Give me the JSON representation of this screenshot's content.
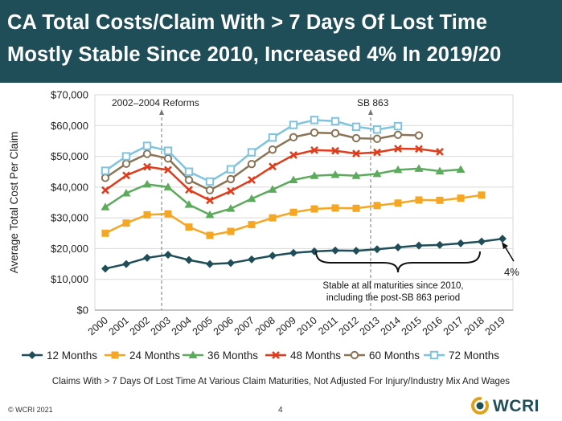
{
  "title": {
    "line1": "CA Total Costs/Claim With > 7 Days Of Lost Time",
    "line2": "Mostly Stable Since 2010, Increased 4% In 2019/20"
  },
  "caption": "Claims With > 7 Days Of Lost Time At Various Claim Maturities, Not Adjusted For Injury/Industry Mix And Wages",
  "footer": {
    "copyright": "© WCRI 2021",
    "page_number": "4",
    "logo_text": "WCRI"
  },
  "colors": {
    "title_bg": "#1f4e58",
    "grid": "#d9d9d9",
    "axis": "#888888",
    "12": "#1f4e58",
    "24": "#f5a623",
    "36": "#5cab5c",
    "48": "#e03c1c",
    "60": "#8b7355",
    "72": "#7fc3de"
  },
  "chart_data": {
    "type": "line",
    "title": "CA Total Costs/Claim With > 7 Days Of Lost Time",
    "ylabel": "Average Total Cost Per Claim",
    "xlabel": "",
    "ylim": [
      0,
      70000
    ],
    "yticks": [
      0,
      10000,
      20000,
      30000,
      40000,
      50000,
      60000,
      70000
    ],
    "ytick_labels": [
      "$0",
      "$10,000",
      "$20,000",
      "$30,000",
      "$40,000",
      "$50,000",
      "$60,000",
      "$70,000"
    ],
    "categories": [
      "2000",
      "2001",
      "2002",
      "2003",
      "2004",
      "2005",
      "2006",
      "2007",
      "2008",
      "2009",
      "2010",
      "2011",
      "2012",
      "2013",
      "2014",
      "2015",
      "2016",
      "2017",
      "2018",
      "2019"
    ],
    "series": [
      {
        "key": "12",
        "name": "12 Months",
        "marker": "diamond",
        "values": [
          13500,
          15000,
          17000,
          18000,
          16300,
          15000,
          15300,
          16500,
          17700,
          18600,
          19100,
          19400,
          19300,
          19800,
          20400,
          21000,
          21200,
          21700,
          22300,
          23200
        ]
      },
      {
        "key": "24",
        "name": "24 Months",
        "marker": "square",
        "values": [
          25000,
          28300,
          31000,
          31300,
          27000,
          24300,
          25600,
          27800,
          30000,
          31800,
          32900,
          33200,
          33100,
          34000,
          34800,
          35800,
          35700,
          36400,
          37400,
          null
        ]
      },
      {
        "key": "36",
        "name": "36 Months",
        "marker": "triangle",
        "values": [
          33500,
          38000,
          40900,
          40000,
          34300,
          31000,
          33000,
          36200,
          39200,
          42300,
          43700,
          44000,
          43700,
          44300,
          45600,
          46000,
          45200,
          45700,
          null,
          null
        ]
      },
      {
        "key": "48",
        "name": "48 Months",
        "marker": "x",
        "values": [
          39000,
          43800,
          46600,
          45600,
          39100,
          35700,
          38700,
          42300,
          46700,
          50400,
          52000,
          51800,
          50900,
          51300,
          52500,
          52400,
          51500,
          null,
          null,
          null
        ]
      },
      {
        "key": "60",
        "name": "60 Months",
        "marker": "circle",
        "values": [
          43000,
          47600,
          50800,
          49300,
          42300,
          39000,
          42600,
          47500,
          52200,
          56200,
          57700,
          57500,
          55900,
          55700,
          57000,
          56800,
          null,
          null,
          null,
          null
        ]
      },
      {
        "key": "72",
        "name": "72 Months",
        "marker": "square-open",
        "values": [
          45300,
          50000,
          53400,
          51800,
          45000,
          41800,
          45800,
          51300,
          56100,
          60200,
          61800,
          61400,
          59600,
          58700,
          59800,
          null,
          null,
          null,
          null,
          null
        ]
      }
    ],
    "annotations": {
      "reforms": {
        "label": "2002–2004 Reforms",
        "x_category": "2003"
      },
      "sb863": {
        "label": "SB 863",
        "x_category": "2013"
      },
      "brace_line1": "Stable at all maturities since 2010,",
      "brace_line2": "including the post-SB 863 period",
      "pct_label": "4%"
    },
    "legend_position": "bottom"
  }
}
